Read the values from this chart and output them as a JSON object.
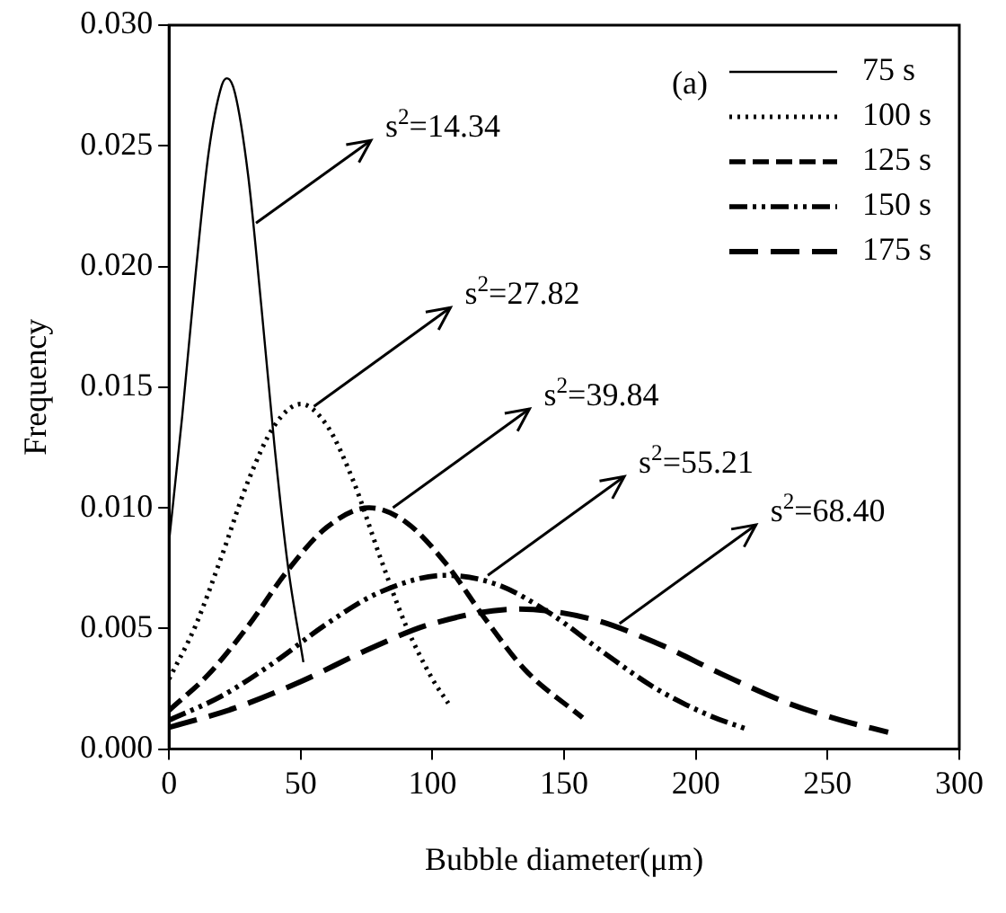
{
  "chart_data": {
    "type": "line",
    "xlabel": "Bubble diameter(μm)",
    "ylabel": "Frequency",
    "xlim": [
      0,
      300
    ],
    "xticks": [
      0,
      50,
      100,
      150,
      200,
      250,
      300
    ],
    "ylim": [
      0,
      0.03
    ],
    "yticks": [
      {
        "value": 0,
        "label": "0.000"
      },
      0.005,
      {
        "value": 0.01,
        "label": "0.010"
      },
      0.015,
      {
        "value": 0.02,
        "label": "0.020"
      },
      0.025,
      {
        "value": 0.03,
        "label": "0.030"
      }
    ],
    "grid": false,
    "legend": "top right",
    "marker": "none",
    "series": [
      {
        "name": "75 s",
        "color": "#000000",
        "line_style": "solid",
        "x": [
          0,
          5,
          10,
          15,
          20,
          22,
          25,
          30,
          35,
          40,
          45,
          51
        ],
        "values": [
          0.0086,
          0.0138,
          0.0196,
          0.0247,
          0.0275,
          0.0278,
          0.0272,
          0.0238,
          0.0184,
          0.0126,
          0.0077,
          0.0036
        ]
      },
      {
        "name": "100 s",
        "color": "#000000",
        "line_style": "dotted",
        "x": [
          0,
          10,
          20,
          30,
          40,
          50,
          60,
          70,
          80,
          90,
          100,
          106
        ],
        "values": [
          0.0029,
          0.0051,
          0.008,
          0.0111,
          0.0134,
          0.0143,
          0.0134,
          0.0111,
          0.008,
          0.0051,
          0.0029,
          0.0019
        ]
      },
      {
        "name": "125 s",
        "color": "#000000",
        "line_style": "dashed",
        "x": [
          0,
          15,
          30,
          45,
          60,
          76,
          90,
          105,
          120,
          135,
          157
        ],
        "values": [
          0.0016,
          0.0031,
          0.0051,
          0.0074,
          0.0092,
          0.01,
          0.0094,
          0.0077,
          0.0054,
          0.0033,
          0.0013
        ]
      },
      {
        "name": "150 s",
        "color": "#000000",
        "line_style": "dashdot",
        "x": [
          0,
          20,
          40,
          60,
          80,
          105,
          125,
          145,
          165,
          185,
          205,
          220
        ],
        "values": [
          0.0012,
          0.0022,
          0.0036,
          0.0052,
          0.0065,
          0.0072,
          0.0068,
          0.0056,
          0.004,
          0.0025,
          0.0014,
          0.0008
        ]
      },
      {
        "name": "175 s",
        "color": "#000000",
        "line_style": "longdash",
        "x": [
          0,
          25,
          50,
          75,
          100,
          133,
          160,
          185,
          210,
          235,
          255,
          273
        ],
        "values": [
          0.0009,
          0.0017,
          0.0028,
          0.0041,
          0.0052,
          0.0058,
          0.0054,
          0.0044,
          0.0031,
          0.0019,
          0.0012,
          0.0007
        ]
      }
    ],
    "annotations": [
      "(a)",
      {
        "text": "s$^{2}$=14.34",
        "x": 33,
        "y": 0.0218
      },
      {
        "text": "s$^{2}$=27.82",
        "x": 55,
        "y": 0.0142
      },
      {
        "text": "s$^{2}$=39.84",
        "x": 85,
        "y": 0.01
      },
      {
        "text": "s$^{2}$=55.21",
        "x": 121,
        "y": 0.0072
      },
      {
        "text": "s$^{2}$=68.40",
        "x": 171,
        "y": 0.0052
      }
    ]
  }
}
